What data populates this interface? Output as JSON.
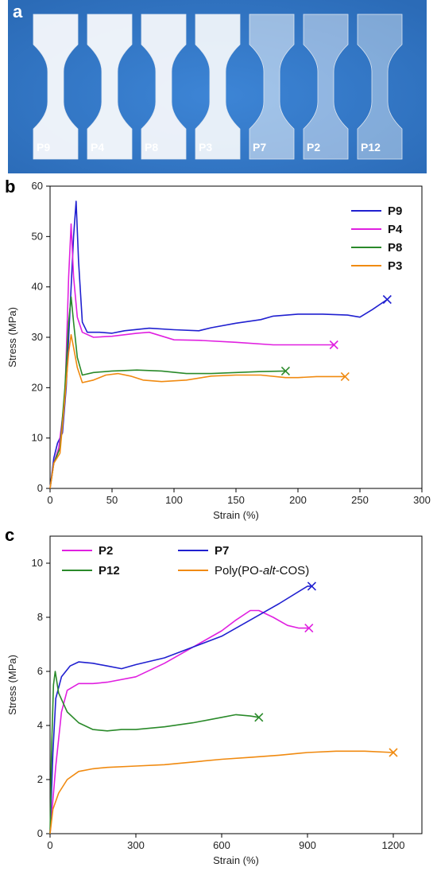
{
  "photo": {
    "letter": "a",
    "background": "#2b6bb7",
    "specimens": [
      {
        "label": "P9",
        "opacity": 0.96
      },
      {
        "label": "P4",
        "opacity": 0.96
      },
      {
        "label": "P8",
        "opacity": 0.95
      },
      {
        "label": "P3",
        "opacity": 0.93
      },
      {
        "label": "P7",
        "opacity": 0.55
      },
      {
        "label": "P2",
        "opacity": 0.48
      },
      {
        "label": "P12",
        "opacity": 0.42
      }
    ]
  },
  "chart_data": [
    {
      "letter": "b",
      "type": "line",
      "xlabel": "Strain (%)",
      "ylabel": "Stress (MPa)",
      "xlim": [
        0,
        300
      ],
      "ylim": [
        0,
        60
      ],
      "xticks": [
        0,
        50,
        100,
        150,
        200,
        250,
        300
      ],
      "yticks": [
        0,
        10,
        20,
        30,
        40,
        50,
        60
      ],
      "legend_position": "top-right",
      "series": [
        {
          "name": "P9",
          "color": "#2020d0",
          "break_marker": "x",
          "points": [
            [
              0,
              0
            ],
            [
              3,
              6
            ],
            [
              6,
              9
            ],
            [
              10,
              11
            ],
            [
              13,
              20
            ],
            [
              16,
              35
            ],
            [
              19,
              50
            ],
            [
              21,
              57
            ],
            [
              23,
              45
            ],
            [
              26,
              33
            ],
            [
              30,
              31
            ],
            [
              40,
              31
            ],
            [
              50,
              30.8
            ],
            [
              60,
              31.3
            ],
            [
              80,
              31.8
            ],
            [
              100,
              31.5
            ],
            [
              120,
              31.3
            ],
            [
              130,
              31.9
            ],
            [
              150,
              32.8
            ],
            [
              170,
              33.5
            ],
            [
              180,
              34.2
            ],
            [
              200,
              34.6
            ],
            [
              220,
              34.6
            ],
            [
              240,
              34.4
            ],
            [
              250,
              34
            ],
            [
              260,
              35.5
            ],
            [
              272,
              37.5
            ]
          ]
        },
        {
          "name": "P4",
          "color": "#e020e0",
          "break_marker": "x",
          "points": [
            [
              0,
              0
            ],
            [
              3,
              5
            ],
            [
              7,
              8
            ],
            [
              12,
              18
            ],
            [
              15,
              42
            ],
            [
              17,
              52.5
            ],
            [
              19,
              42
            ],
            [
              22,
              34
            ],
            [
              26,
              31
            ],
            [
              35,
              30
            ],
            [
              50,
              30.2
            ],
            [
              70,
              30.8
            ],
            [
              80,
              31
            ],
            [
              100,
              29.5
            ],
            [
              120,
              29.4
            ],
            [
              150,
              29
            ],
            [
              180,
              28.5
            ],
            [
              200,
              28.5
            ],
            [
              215,
              28.5
            ],
            [
              229,
              28.5
            ]
          ]
        },
        {
          "name": "P8",
          "color": "#2a8a2a",
          "break_marker": "x",
          "points": [
            [
              0,
              0
            ],
            [
              3,
              5
            ],
            [
              8,
              8
            ],
            [
              12,
              20
            ],
            [
              15,
              33
            ],
            [
              17,
              38
            ],
            [
              19,
              33
            ],
            [
              22,
              26
            ],
            [
              26,
              22.5
            ],
            [
              35,
              23
            ],
            [
              50,
              23.3
            ],
            [
              70,
              23.5
            ],
            [
              90,
              23.3
            ],
            [
              110,
              22.8
            ],
            [
              130,
              22.8
            ],
            [
              150,
              23
            ],
            [
              170,
              23.2
            ],
            [
              190,
              23.3
            ]
          ]
        },
        {
          "name": "P3",
          "color": "#f08a10",
          "break_marker": "x",
          "points": [
            [
              0,
              0
            ],
            [
              3,
              5
            ],
            [
              8,
              7
            ],
            [
              12,
              18
            ],
            [
              15,
              27
            ],
            [
              17,
              30.5
            ],
            [
              19,
              28
            ],
            [
              22,
              24
            ],
            [
              26,
              21
            ],
            [
              35,
              21.5
            ],
            [
              45,
              22.5
            ],
            [
              55,
              22.8
            ],
            [
              65,
              22.3
            ],
            [
              75,
              21.5
            ],
            [
              90,
              21.2
            ],
            [
              110,
              21.5
            ],
            [
              130,
              22.3
            ],
            [
              150,
              22.5
            ],
            [
              170,
              22.5
            ],
            [
              190,
              22
            ],
            [
              200,
              22
            ],
            [
              215,
              22.2
            ],
            [
              238,
              22.2
            ]
          ]
        }
      ]
    },
    {
      "letter": "c",
      "type": "line",
      "xlabel": "Strain (%)",
      "ylabel": "Stress (MPa)",
      "xlim": [
        0,
        1300
      ],
      "ylim": [
        0,
        11
      ],
      "xticks": [
        0,
        300,
        600,
        900,
        1200
      ],
      "yticks": [
        0,
        2,
        4,
        6,
        8,
        10
      ],
      "legend_position": "top",
      "series": [
        {
          "name": "P2",
          "color": "#e020e0",
          "bold": true,
          "break_marker": "x",
          "points": [
            [
              0,
              0
            ],
            [
              20,
              2.5
            ],
            [
              40,
              4.5
            ],
            [
              60,
              5.3
            ],
            [
              100,
              5.55
            ],
            [
              150,
              5.55
            ],
            [
              200,
              5.6
            ],
            [
              300,
              5.8
            ],
            [
              400,
              6.3
            ],
            [
              500,
              6.9
            ],
            [
              600,
              7.5
            ],
            [
              650,
              7.9
            ],
            [
              700,
              8.25
            ],
            [
              730,
              8.25
            ],
            [
              780,
              8.0
            ],
            [
              830,
              7.7
            ],
            [
              870,
              7.6
            ],
            [
              905,
              7.6
            ]
          ]
        },
        {
          "name": "P7",
          "color": "#2020d0",
          "bold": true,
          "break_marker": "x",
          "points": [
            [
              0,
              0
            ],
            [
              10,
              3
            ],
            [
              20,
              5
            ],
            [
              40,
              5.8
            ],
            [
              70,
              6.2
            ],
            [
              100,
              6.35
            ],
            [
              150,
              6.3
            ],
            [
              200,
              6.2
            ],
            [
              250,
              6.1
            ],
            [
              300,
              6.25
            ],
            [
              400,
              6.5
            ],
            [
              500,
              6.9
            ],
            [
              600,
              7.3
            ],
            [
              700,
              7.9
            ],
            [
              800,
              8.5
            ],
            [
              900,
              9.15
            ],
            [
              915,
              9.15
            ]
          ]
        },
        {
          "name": "P12",
          "color": "#2a8a2a",
          "bold": true,
          "break_marker": "x",
          "points": [
            [
              0,
              0
            ],
            [
              5,
              3
            ],
            [
              12,
              5.5
            ],
            [
              18,
              6.0
            ],
            [
              30,
              5.2
            ],
            [
              60,
              4.5
            ],
            [
              100,
              4.1
            ],
            [
              150,
              3.85
            ],
            [
              200,
              3.8
            ],
            [
              250,
              3.85
            ],
            [
              300,
              3.85
            ],
            [
              400,
              3.95
            ],
            [
              500,
              4.1
            ],
            [
              600,
              4.3
            ],
            [
              650,
              4.4
            ],
            [
              700,
              4.35
            ],
            [
              730,
              4.3
            ]
          ]
        },
        {
          "name": "Poly(PO-alt-COS)",
          "color": "#f08a10",
          "bold": false,
          "break_marker": "x",
          "points": [
            [
              0,
              0
            ],
            [
              10,
              0.9
            ],
            [
              30,
              1.5
            ],
            [
              60,
              2.0
            ],
            [
              100,
              2.3
            ],
            [
              150,
              2.4
            ],
            [
              200,
              2.45
            ],
            [
              300,
              2.5
            ],
            [
              400,
              2.55
            ],
            [
              500,
              2.65
            ],
            [
              600,
              2.75
            ],
            [
              700,
              2.82
            ],
            [
              800,
              2.9
            ],
            [
              900,
              3.0
            ],
            [
              1000,
              3.05
            ],
            [
              1100,
              3.05
            ],
            [
              1200,
              3.0
            ]
          ]
        }
      ]
    }
  ]
}
